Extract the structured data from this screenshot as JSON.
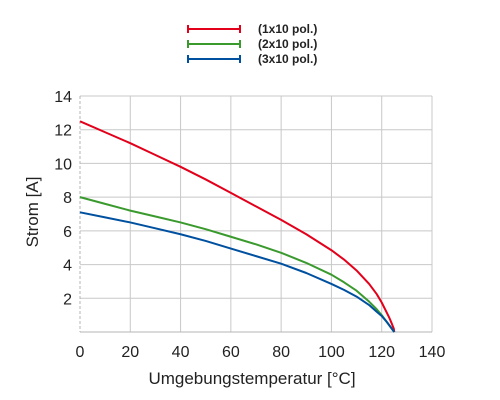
{
  "chart_data": {
    "type": "line",
    "xlabel": "Umgebungstemperatur [°C]",
    "ylabel": "Strom [A]",
    "xlim": [
      0,
      140
    ],
    "ylim": [
      0,
      14
    ],
    "x_ticks": [
      0,
      20,
      40,
      60,
      80,
      100,
      120,
      140
    ],
    "y_ticks": [
      2,
      4,
      6,
      8,
      10,
      12,
      14
    ],
    "grid": true,
    "legend_position": "top-center",
    "series": [
      {
        "name": "(1x10 pol.)",
        "color": "#e3001b",
        "x": [
          0,
          10,
          20,
          30,
          40,
          50,
          60,
          70,
          80,
          90,
          100,
          105,
          110,
          115,
          118,
          120,
          122,
          123,
          124,
          124.8,
          125
        ],
        "y": [
          12.5,
          11.85,
          11.2,
          10.5,
          9.8,
          9.05,
          8.25,
          7.45,
          6.65,
          5.8,
          4.85,
          4.3,
          3.65,
          2.85,
          2.25,
          1.75,
          1.15,
          0.85,
          0.5,
          0.2,
          0.0
        ]
      },
      {
        "name": "(2x10 pol.)",
        "color": "#3a9a2e",
        "x": [
          0,
          10,
          20,
          30,
          40,
          50,
          60,
          70,
          80,
          90,
          100,
          105,
          110,
          115,
          118,
          120,
          122,
          123,
          124,
          125
        ],
        "y": [
          8.0,
          7.6,
          7.2,
          6.85,
          6.5,
          6.1,
          5.65,
          5.2,
          4.7,
          4.1,
          3.4,
          2.95,
          2.45,
          1.8,
          1.35,
          1.0,
          0.6,
          0.4,
          0.2,
          0.0
        ]
      },
      {
        "name": "(3x10 pol.)",
        "color": "#0050a0",
        "x": [
          0,
          10,
          20,
          30,
          40,
          50,
          60,
          70,
          80,
          90,
          100,
          105,
          110,
          115,
          118,
          120,
          122,
          123,
          124,
          125
        ],
        "y": [
          7.1,
          6.8,
          6.5,
          6.15,
          5.8,
          5.4,
          4.95,
          4.5,
          4.05,
          3.5,
          2.85,
          2.5,
          2.1,
          1.6,
          1.2,
          0.95,
          0.6,
          0.4,
          0.2,
          0.0
        ]
      }
    ]
  }
}
